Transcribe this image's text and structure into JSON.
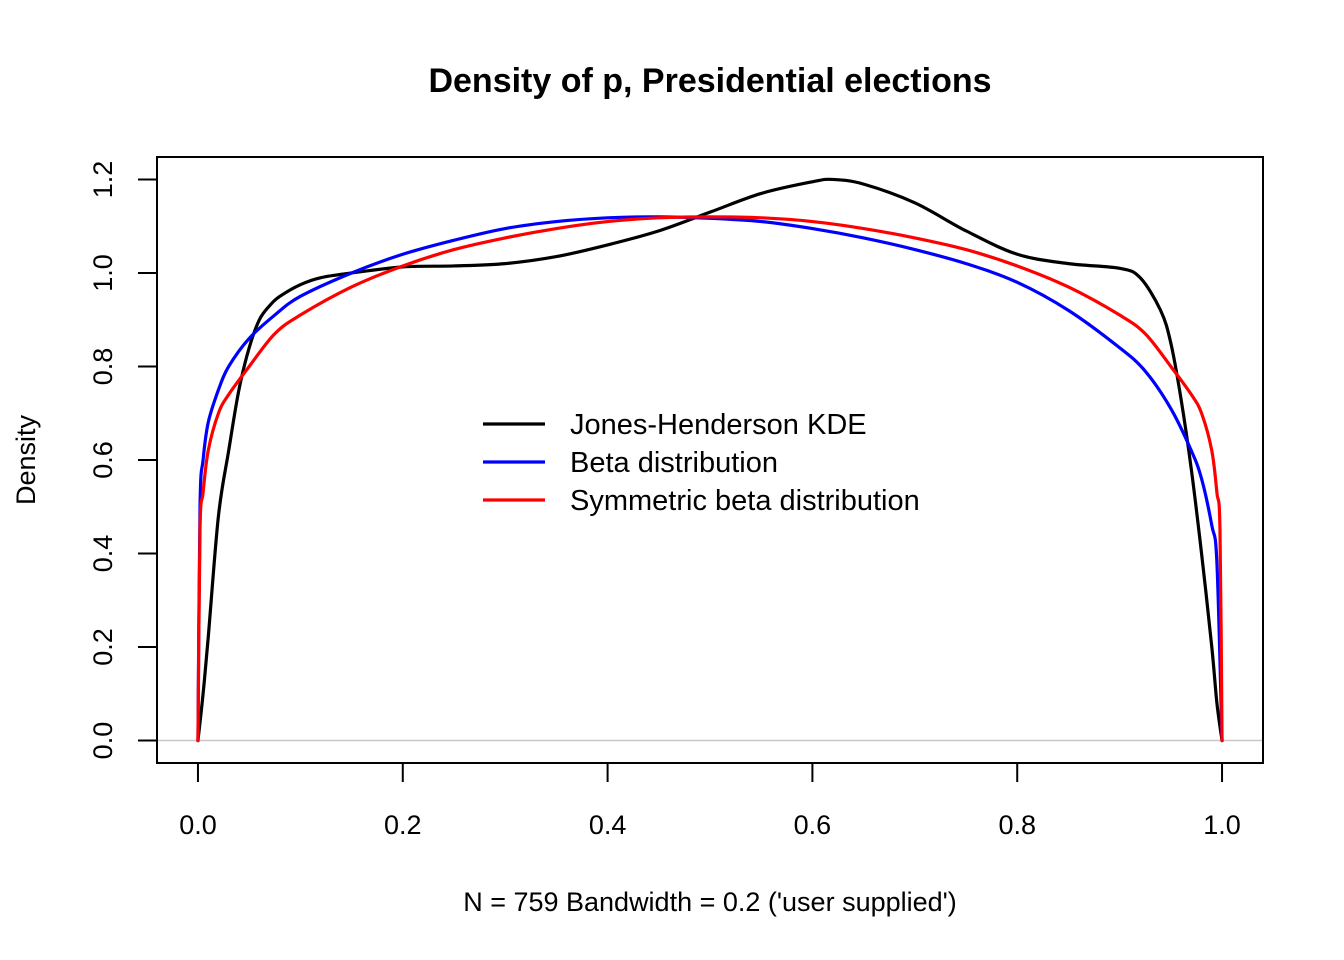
{
  "chart_data": {
    "type": "line",
    "title": "Density of p, Presidential elections",
    "xlabel": "N = 759   Bandwidth = 0.2 ('user supplied')",
    "ylabel": "Density",
    "xlim": [
      -0.04,
      1.04
    ],
    "ylim": [
      -0.048,
      1.248
    ],
    "xticks": [
      "0.0",
      "0.2",
      "0.4",
      "0.6",
      "0.8",
      "1.0"
    ],
    "yticks": [
      "0.0",
      "0.2",
      "0.4",
      "0.6",
      "0.8",
      "1.0",
      "1.2"
    ],
    "grid": false,
    "baseline": {
      "y": 0,
      "color": "#c8c8c8"
    },
    "legend_position": "center",
    "series": [
      {
        "name": "Jones-Henderson KDE",
        "color": "#000000",
        "x": [
          0,
          0.005,
          0.01,
          0.02,
          0.03,
          0.04,
          0.05,
          0.06,
          0.07,
          0.08,
          0.1,
          0.12,
          0.15,
          0.2,
          0.25,
          0.3,
          0.35,
          0.4,
          0.45,
          0.5,
          0.55,
          0.6,
          0.62,
          0.65,
          0.7,
          0.75,
          0.8,
          0.85,
          0.9,
          0.92,
          0.94,
          0.95,
          0.96,
          0.97,
          0.98,
          0.99,
          0.995,
          1.0
        ],
        "y": [
          0.0,
          0.1,
          0.22,
          0.48,
          0.62,
          0.75,
          0.84,
          0.9,
          0.93,
          0.95,
          0.975,
          0.99,
          1.0,
          1.013,
          1.015,
          1.02,
          1.035,
          1.06,
          1.09,
          1.13,
          1.17,
          1.195,
          1.2,
          1.19,
          1.15,
          1.09,
          1.04,
          1.02,
          1.01,
          0.99,
          0.92,
          0.85,
          0.73,
          0.58,
          0.4,
          0.2,
          0.08,
          0.0
        ]
      },
      {
        "name": "Beta distribution",
        "color": "#0000ff",
        "x": [
          0,
          0.002,
          0.005,
          0.01,
          0.02,
          0.03,
          0.05,
          0.075,
          0.1,
          0.15,
          0.2,
          0.25,
          0.3,
          0.35,
          0.4,
          0.45,
          0.5,
          0.55,
          0.6,
          0.65,
          0.7,
          0.75,
          0.8,
          0.85,
          0.9,
          0.925,
          0.95,
          0.97,
          0.98,
          0.99,
          0.995,
          1.0
        ],
        "y": [
          0.0,
          0.5,
          0.6,
          0.68,
          0.75,
          0.8,
          0.86,
          0.91,
          0.95,
          1.0,
          1.04,
          1.07,
          1.095,
          1.11,
          1.118,
          1.12,
          1.117,
          1.11,
          1.095,
          1.075,
          1.05,
          1.02,
          0.98,
          0.92,
          0.84,
          0.79,
          0.71,
          0.62,
          0.56,
          0.46,
          0.38,
          0.0
        ]
      },
      {
        "name": "Symmetric beta distribution",
        "color": "#ff0000",
        "x": [
          0,
          0.002,
          0.005,
          0.01,
          0.02,
          0.03,
          0.05,
          0.075,
          0.1,
          0.15,
          0.2,
          0.25,
          0.3,
          0.35,
          0.4,
          0.45,
          0.5,
          0.55,
          0.6,
          0.65,
          0.7,
          0.75,
          0.8,
          0.85,
          0.9,
          0.925,
          0.95,
          0.97,
          0.98,
          0.99,
          0.995,
          0.998,
          1.0
        ],
        "y": [
          0.0,
          0.45,
          0.53,
          0.62,
          0.7,
          0.74,
          0.8,
          0.87,
          0.91,
          0.97,
          1.015,
          1.05,
          1.075,
          1.095,
          1.11,
          1.118,
          1.12,
          1.118,
          1.11,
          1.095,
          1.075,
          1.05,
          1.015,
          0.97,
          0.91,
          0.87,
          0.8,
          0.74,
          0.7,
          0.62,
          0.53,
          0.45,
          0.0
        ]
      }
    ]
  }
}
